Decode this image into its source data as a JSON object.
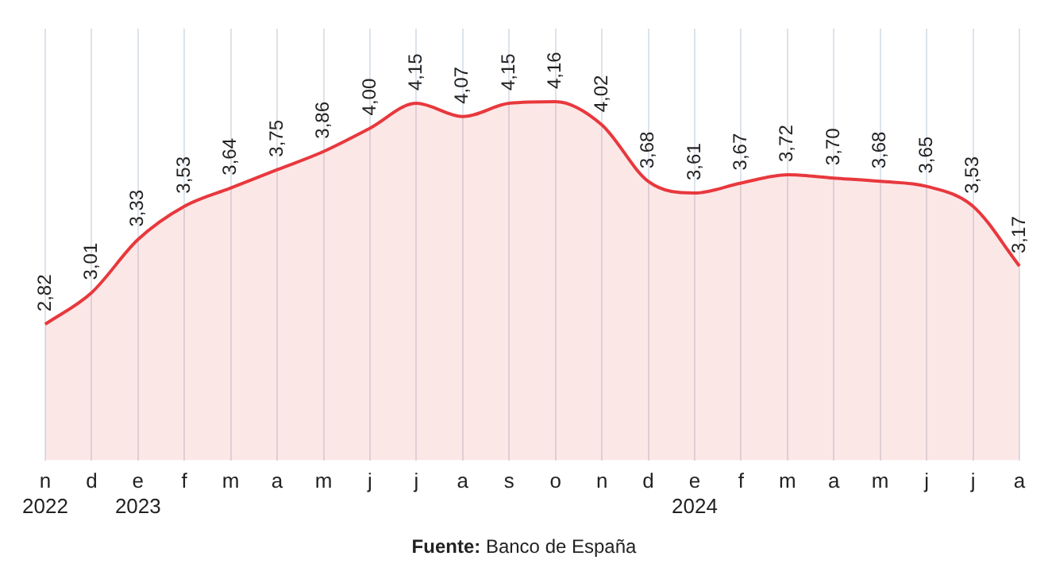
{
  "chart_data": {
    "type": "area",
    "categories": [
      "n\n2022",
      "d",
      "e\n2023",
      "f",
      "m",
      "a",
      "m",
      "j",
      "j",
      "a",
      "s",
      "o",
      "n",
      "d",
      "e\n2024",
      "f",
      "m",
      "a",
      "m",
      "j",
      "j",
      "a"
    ],
    "series": [
      {
        "color": "#e8383d",
        "values": [
          2.82,
          3.01,
          3.33,
          3.53,
          3.64,
          3.75,
          3.86,
          4.0,
          4.15,
          4.07,
          4.15,
          4.16,
          4.02,
          3.68,
          3.61,
          3.67,
          3.72,
          3.7,
          3.68,
          3.65,
          3.53,
          3.17
        ],
        "value_labels": [
          "2,82",
          "3,01",
          "3,33",
          "3,53",
          "3,64",
          "3,75",
          "3,86",
          "4,00",
          "4,15",
          "4,07",
          "4,15",
          "4,16",
          "4,02",
          "3,68",
          "3,61",
          "3,67",
          "3,72",
          "3,70",
          "3,68",
          "3,65",
          "3,53",
          "3,17"
        ]
      }
    ],
    "ylim": [
      2,
      4.6
    ],
    "tick_labels": "x",
    "grid": "x",
    "legend": false,
    "annotations": [
      "Fuente: Banco de España"
    ]
  }
}
